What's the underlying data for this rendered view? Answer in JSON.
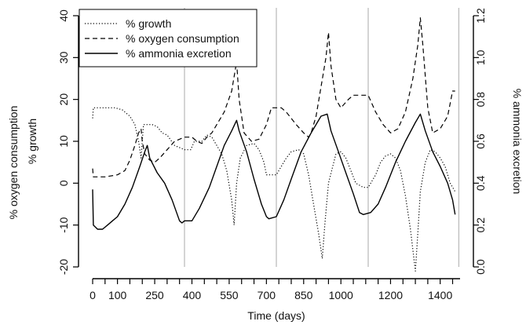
{
  "chart_data": {
    "type": "line",
    "xlabel": "Time (days)",
    "ylabel_left_outer": "% oxygen consumption",
    "ylabel_left_inner": "% growth",
    "ylabel_right": "% ammonia excretion",
    "xlim": [
      0,
      1480
    ],
    "ylim_left": [
      -20,
      40
    ],
    "ylim_right": [
      0.0,
      1.2
    ],
    "x_tick_labels": [
      {
        "v": 0,
        "label": "0"
      },
      {
        "v": 100,
        "label": "100"
      },
      {
        "v": 250,
        "label": "250"
      },
      {
        "v": 400,
        "label": "400"
      },
      {
        "v": 550,
        "label": "550"
      },
      {
        "v": 700,
        "label": "700"
      },
      {
        "v": 850,
        "label": "850"
      },
      {
        "v": 1000,
        "label": "1000"
      },
      {
        "v": 1200,
        "label": "1200"
      },
      {
        "v": 1400,
        "label": "1400"
      }
    ],
    "x_minor_ticks": [
      0,
      50,
      100,
      150,
      200,
      250,
      300,
      350,
      400,
      450,
      500,
      550,
      600,
      650,
      700,
      750,
      800,
      850,
      900,
      950,
      1000,
      1050,
      1100,
      1150,
      1200,
      1250,
      1300,
      1350,
      1400,
      1450
    ],
    "y_left_ticks": [
      -20,
      -10,
      0,
      10,
      20,
      30,
      40
    ],
    "y_right_ticks": [
      "0.0",
      "0.2",
      "0.4",
      "0.6",
      "0.8",
      "1.0",
      "1.2"
    ],
    "vertical_gridlines_x": [
      370,
      740,
      1110,
      1475
    ],
    "grid_color": "#bdbdbd",
    "legend": {
      "placement": "top-left",
      "entries": [
        {
          "label": "% growth",
          "style": "dotted"
        },
        {
          "label": "% oxygen consumption",
          "style": "dashed"
        },
        {
          "label": "% ammonia excretion",
          "style": "solid"
        }
      ]
    },
    "series": [
      {
        "name": "% growth",
        "axis": "left",
        "style": "dotted",
        "points": [
          [
            0,
            15.5
          ],
          [
            3,
            18
          ],
          [
            90,
            18
          ],
          [
            120,
            17.5
          ],
          [
            150,
            16
          ],
          [
            170,
            14
          ],
          [
            185,
            10
          ],
          [
            195,
            6
          ],
          [
            200,
            10
          ],
          [
            205,
            14
          ],
          [
            240,
            14
          ],
          [
            260,
            13.5
          ],
          [
            280,
            12
          ],
          [
            300,
            11.5
          ],
          [
            330,
            9
          ],
          [
            370,
            8
          ],
          [
            395,
            8
          ],
          [
            410,
            10
          ],
          [
            440,
            10
          ],
          [
            460,
            11.5
          ],
          [
            480,
            11
          ],
          [
            500,
            9
          ],
          [
            520,
            7
          ],
          [
            540,
            3
          ],
          [
            560,
            -4
          ],
          [
            570,
            -10
          ],
          [
            580,
            0
          ],
          [
            595,
            6
          ],
          [
            620,
            9
          ],
          [
            650,
            9.5
          ],
          [
            670,
            8
          ],
          [
            690,
            5
          ],
          [
            700,
            2
          ],
          [
            720,
            2
          ],
          [
            740,
            2
          ],
          [
            760,
            4
          ],
          [
            780,
            6
          ],
          [
            800,
            7.5
          ],
          [
            830,
            8
          ],
          [
            850,
            7
          ],
          [
            870,
            2
          ],
          [
            890,
            -5
          ],
          [
            910,
            -12
          ],
          [
            925,
            -18
          ],
          [
            935,
            -10
          ],
          [
            950,
            0
          ],
          [
            980,
            7
          ],
          [
            1000,
            7.5
          ],
          [
            1020,
            6
          ],
          [
            1040,
            3
          ],
          [
            1060,
            0
          ],
          [
            1090,
            -1
          ],
          [
            1110,
            -1
          ],
          [
            1140,
            2
          ],
          [
            1160,
            5
          ],
          [
            1180,
            6.5
          ],
          [
            1200,
            7
          ],
          [
            1220,
            6
          ],
          [
            1240,
            3
          ],
          [
            1260,
            -3
          ],
          [
            1280,
            -11
          ],
          [
            1300,
            -21
          ],
          [
            1310,
            -12
          ],
          [
            1320,
            -2
          ],
          [
            1340,
            5
          ],
          [
            1360,
            8
          ],
          [
            1380,
            7.5
          ],
          [
            1400,
            6
          ],
          [
            1420,
            4
          ],
          [
            1440,
            0
          ],
          [
            1460,
            -2
          ]
        ]
      },
      {
        "name": "% oxygen consumption",
        "axis": "left",
        "style": "dashed",
        "points": [
          [
            0,
            3.5
          ],
          [
            3,
            1.5
          ],
          [
            50,
            1.5
          ],
          [
            100,
            2
          ],
          [
            130,
            3
          ],
          [
            150,
            5.5
          ],
          [
            170,
            9
          ],
          [
            185,
            12
          ],
          [
            195,
            13
          ],
          [
            200,
            10
          ],
          [
            210,
            7
          ],
          [
            230,
            5.5
          ],
          [
            250,
            5
          ],
          [
            270,
            6
          ],
          [
            300,
            8
          ],
          [
            330,
            10
          ],
          [
            370,
            11
          ],
          [
            400,
            11
          ],
          [
            420,
            10
          ],
          [
            440,
            9.5
          ],
          [
            460,
            11
          ],
          [
            480,
            12
          ],
          [
            500,
            14
          ],
          [
            530,
            17
          ],
          [
            560,
            22
          ],
          [
            580,
            29
          ],
          [
            590,
            20
          ],
          [
            610,
            12
          ],
          [
            640,
            10
          ],
          [
            670,
            10.5
          ],
          [
            700,
            14
          ],
          [
            720,
            18
          ],
          [
            760,
            18
          ],
          [
            780,
            17
          ],
          [
            820,
            14
          ],
          [
            850,
            12
          ],
          [
            870,
            11
          ],
          [
            880,
            12
          ],
          [
            900,
            16
          ],
          [
            920,
            23
          ],
          [
            940,
            30
          ],
          [
            950,
            36
          ],
          [
            960,
            28
          ],
          [
            980,
            20
          ],
          [
            1000,
            18
          ],
          [
            1030,
            20
          ],
          [
            1050,
            21
          ],
          [
            1080,
            21
          ],
          [
            1110,
            21
          ],
          [
            1140,
            17
          ],
          [
            1170,
            14
          ],
          [
            1200,
            12
          ],
          [
            1230,
            13
          ],
          [
            1260,
            17
          ],
          [
            1290,
            25
          ],
          [
            1310,
            33
          ],
          [
            1320,
            39.5
          ],
          [
            1330,
            33
          ],
          [
            1350,
            18
          ],
          [
            1370,
            12
          ],
          [
            1400,
            13
          ],
          [
            1430,
            16
          ],
          [
            1450,
            22
          ],
          [
            1460,
            22
          ]
        ]
      },
      {
        "name": "% ammonia excretion",
        "axis": "right",
        "style": "solid",
        "points": [
          [
            0,
            0.37
          ],
          [
            3,
            0.2
          ],
          [
            20,
            0.18
          ],
          [
            40,
            0.18
          ],
          [
            60,
            0.2
          ],
          [
            80,
            0.22
          ],
          [
            100,
            0.24
          ],
          [
            130,
            0.3
          ],
          [
            160,
            0.38
          ],
          [
            190,
            0.48
          ],
          [
            210,
            0.55
          ],
          [
            220,
            0.58
          ],
          [
            230,
            0.52
          ],
          [
            260,
            0.45
          ],
          [
            290,
            0.4
          ],
          [
            320,
            0.32
          ],
          [
            350,
            0.22
          ],
          [
            360,
            0.21
          ],
          [
            370,
            0.22
          ],
          [
            400,
            0.22
          ],
          [
            430,
            0.28
          ],
          [
            470,
            0.38
          ],
          [
            500,
            0.48
          ],
          [
            530,
            0.58
          ],
          [
            560,
            0.65
          ],
          [
            580,
            0.7
          ],
          [
            590,
            0.65
          ],
          [
            620,
            0.55
          ],
          [
            650,
            0.42
          ],
          [
            680,
            0.3
          ],
          [
            700,
            0.24
          ],
          [
            710,
            0.23
          ],
          [
            740,
            0.24
          ],
          [
            770,
            0.32
          ],
          [
            800,
            0.42
          ],
          [
            840,
            0.55
          ],
          [
            880,
            0.64
          ],
          [
            920,
            0.72
          ],
          [
            945,
            0.73
          ],
          [
            960,
            0.65
          ],
          [
            990,
            0.55
          ],
          [
            1020,
            0.45
          ],
          [
            1050,
            0.35
          ],
          [
            1075,
            0.26
          ],
          [
            1090,
            0.25
          ],
          [
            1120,
            0.26
          ],
          [
            1150,
            0.3
          ],
          [
            1180,
            0.38
          ],
          [
            1220,
            0.5
          ],
          [
            1260,
            0.6
          ],
          [
            1300,
            0.69
          ],
          [
            1320,
            0.73
          ],
          [
            1340,
            0.65
          ],
          [
            1370,
            0.55
          ],
          [
            1400,
            0.48
          ],
          [
            1430,
            0.4
          ],
          [
            1450,
            0.32
          ],
          [
            1460,
            0.25
          ]
        ]
      }
    ]
  }
}
